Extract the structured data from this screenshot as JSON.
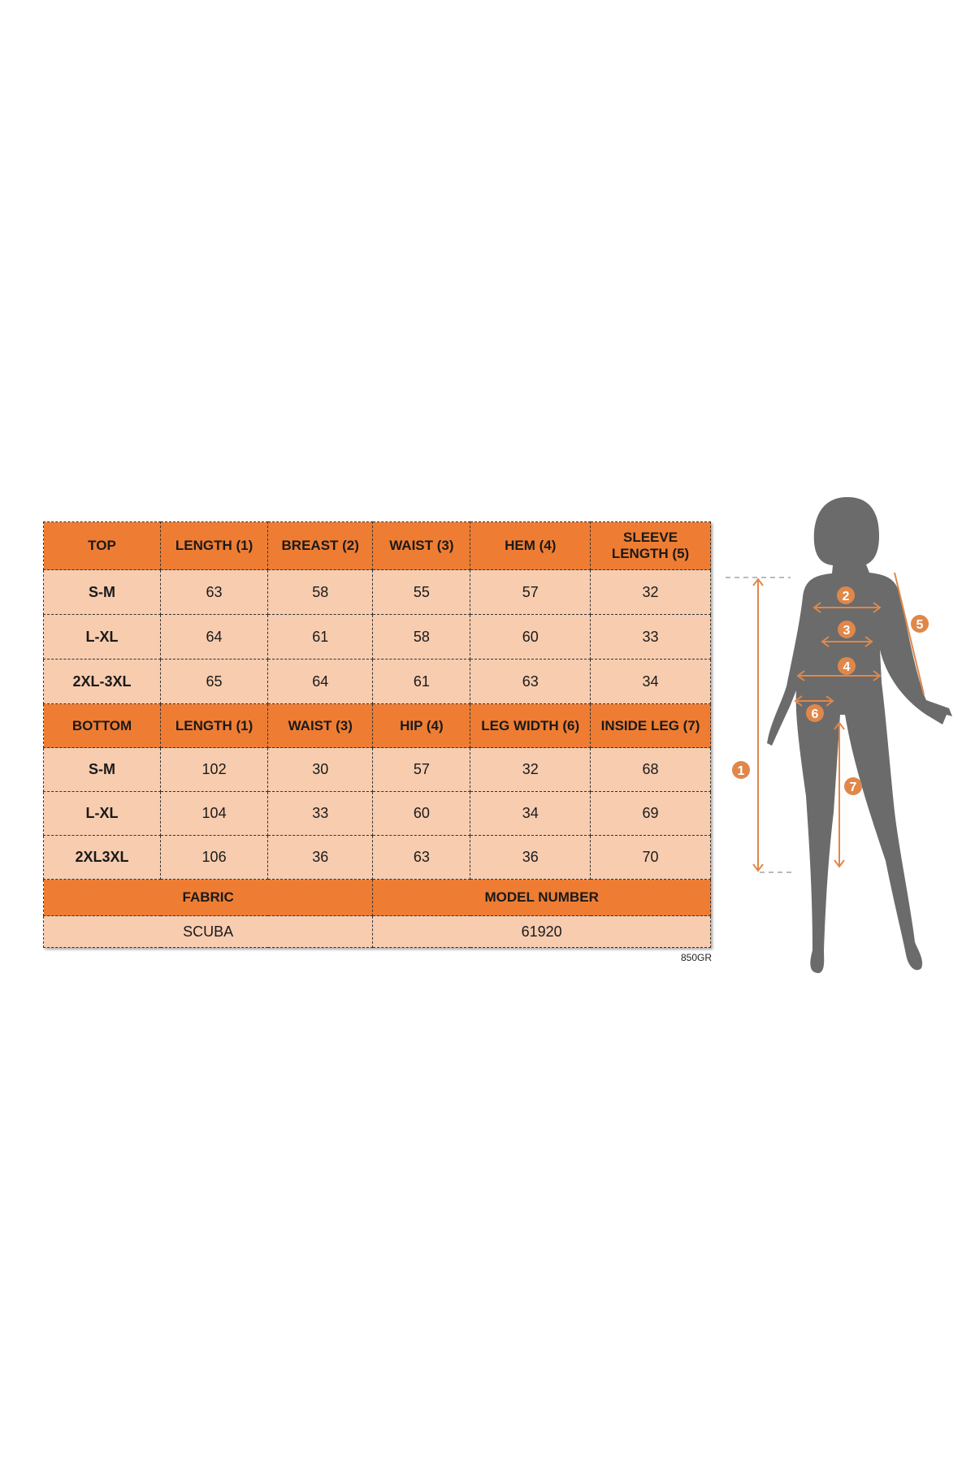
{
  "colors": {
    "header": "#ee7d33",
    "cell": "#f7ccaf",
    "silhouette": "#6b6b6b",
    "measure": "#e0874a"
  },
  "top": {
    "headers": [
      "TOP",
      "LENGTH (1)",
      "BREAST (2)",
      "WAIST (3)",
      "HEM (4)",
      "SLEEVE LENGTH (5)"
    ],
    "rows": [
      [
        "S-M",
        "63",
        "58",
        "55",
        "57",
        "32"
      ],
      [
        "L-XL",
        "64",
        "61",
        "58",
        "60",
        "33"
      ],
      [
        "2XL-3XL",
        "65",
        "64",
        "61",
        "63",
        "34"
      ]
    ]
  },
  "bottom": {
    "headers": [
      "BOTTOM",
      "LENGTH (1)",
      "WAIST (3)",
      "HIP (4)",
      "LEG WIDTH (6)",
      "INSIDE LEG (7)"
    ],
    "rows": [
      [
        "S-M",
        "102",
        "30",
        "57",
        "32",
        "68"
      ],
      [
        "L-XL",
        "104",
        "33",
        "60",
        "34",
        "69"
      ],
      [
        "2XL3XL",
        "106",
        "36",
        "63",
        "36",
        "70"
      ]
    ]
  },
  "footer": {
    "fabric_label": "FABRIC",
    "model_label": "MODEL NUMBER",
    "fabric": "SCUBA",
    "model": "61920"
  },
  "code": "850GR",
  "figure": {
    "markers": [
      "1",
      "2",
      "3",
      "4",
      "5",
      "6",
      "7"
    ]
  }
}
